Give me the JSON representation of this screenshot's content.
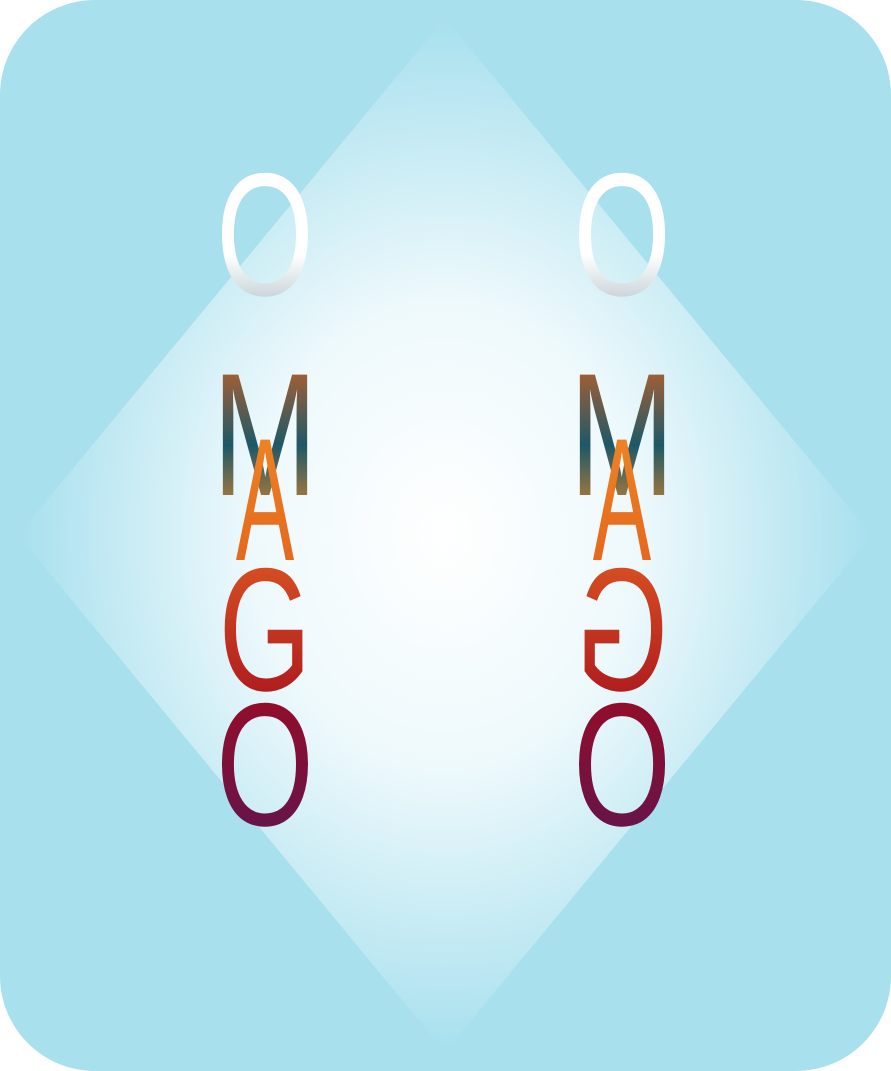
{
  "logo": {
    "left": [
      "O",
      "M",
      "A",
      "G",
      "O"
    ],
    "right": [
      "O",
      "M",
      "A",
      "G",
      "O"
    ]
  }
}
